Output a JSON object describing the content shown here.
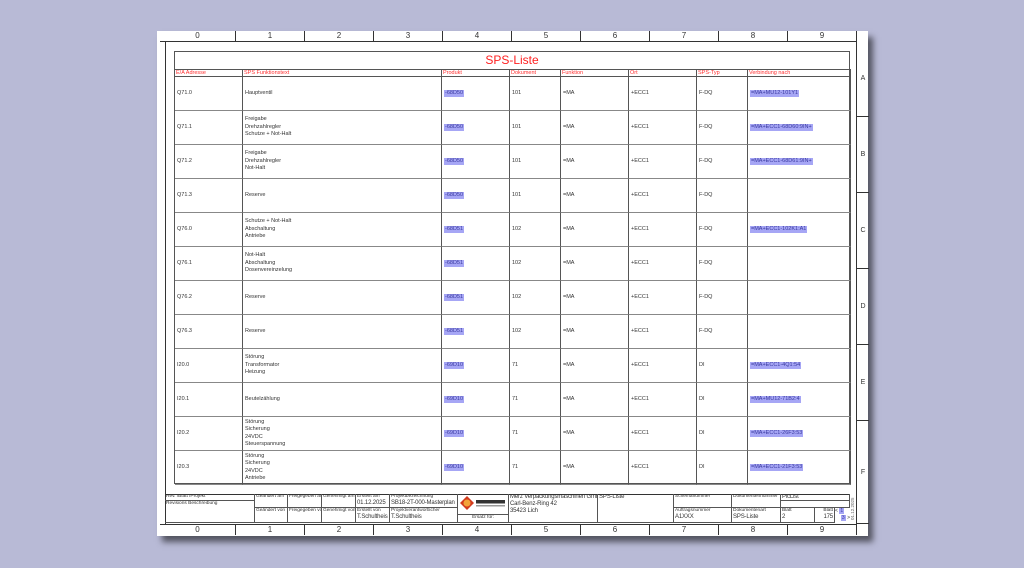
{
  "ruler": {
    "columns": [
      "0",
      "1",
      "2",
      "3",
      "4",
      "5",
      "6",
      "7",
      "8",
      "9"
    ],
    "rows": [
      "A",
      "B",
      "C",
      "D",
      "E",
      "F"
    ]
  },
  "title": "SPS-Liste",
  "headers": [
    "E/A Adresse",
    "SPS Funktionstext",
    "Produkt",
    "Dokument",
    "Funktion",
    "Ort",
    "SPS-Typ",
    "Verbindung nach"
  ],
  "rows": [
    {
      "addr": "Q71.0",
      "text": "Hauptventil",
      "prod": "-68D50",
      "doc": "101",
      "func": "=MA",
      "ort": "+ECC1",
      "typ": "F-DQ",
      "conn": "=MA+MU12-101Y1"
    },
    {
      "addr": "Q71.1",
      "text": "Freigabe\nDrehzahlregler\nSchutze + Not-Halt",
      "prod": "-68D50",
      "doc": "101",
      "func": "=MA",
      "ort": "+ECC1",
      "typ": "F-DQ",
      "conn": "=MA+ECC1-68D60:9IN+"
    },
    {
      "addr": "Q71.2",
      "text": "Freigabe\nDrehzahlregler\nNot-Halt",
      "prod": "-68D50",
      "doc": "101",
      "func": "=MA",
      "ort": "+ECC1",
      "typ": "F-DQ",
      "conn": "=MA+ECC1-68D61:9IN+"
    },
    {
      "addr": "Q71.3",
      "text": "Reserve",
      "prod": "-68D50",
      "doc": "101",
      "func": "=MA",
      "ort": "+ECC1",
      "typ": "F-DQ",
      "conn": ""
    },
    {
      "addr": "Q76.0",
      "text": "Schutze + Not-Halt\nAbschaltung\nAntriebe",
      "prod": "-68D51",
      "doc": "102",
      "func": "=MA",
      "ort": "+ECC1",
      "typ": "F-DQ",
      "conn": "=MA+ECC1-102K1:A1"
    },
    {
      "addr": "Q76.1",
      "text": "Not-Halt\nAbschaltung\nDosenvereinzelung",
      "prod": "-68D51",
      "doc": "102",
      "func": "=MA",
      "ort": "+ECC1",
      "typ": "F-DQ",
      "conn": ""
    },
    {
      "addr": "Q76.2",
      "text": "Reserve",
      "prod": "-68D51",
      "doc": "102",
      "func": "=MA",
      "ort": "+ECC1",
      "typ": "F-DQ",
      "conn": ""
    },
    {
      "addr": "Q76.3",
      "text": "Reserve",
      "prod": "-68D51",
      "doc": "102",
      "func": "=MA",
      "ort": "+ECC1",
      "typ": "F-DQ",
      "conn": ""
    },
    {
      "addr": "I20.0",
      "text": "Störung\nTransformator\nHeizung",
      "prod": "-69D10",
      "doc": "71",
      "func": "=MA",
      "ort": "+ECC1",
      "typ": "DI",
      "conn": "=MA+ECC1-4Q1:54"
    },
    {
      "addr": "I20.1",
      "text": "Beutelzählung",
      "prod": "-69D10",
      "doc": "71",
      "func": "=MA",
      "ort": "+ECC1",
      "typ": "DI",
      "conn": "=MA+MU12-71B2:4"
    },
    {
      "addr": "I20.2",
      "text": "Störung\nSicherung\n24VDC\nSteuerspannung",
      "prod": "-69D10",
      "doc": "71",
      "func": "=MA",
      "ort": "+ECC1",
      "typ": "DI",
      "conn": "=MA+ECC1-26F3:53"
    },
    {
      "addr": "I20.3",
      "text": "Störung\nSicherung\n24VDC\nAntriebe",
      "prod": "-69D10",
      "doc": "71",
      "func": "=MA",
      "ort": "+ECC1",
      "typ": "DI",
      "conn": "=MA+ECC1-21F3:53"
    }
  ],
  "titleblock": {
    "rev_header": "Rev.  /Blatt              /Projekt",
    "rev_desc": "Revisions Beschreibung",
    "changed_on": "Geändert am",
    "approved_on": "Freigegeben am",
    "authorized_on": "Genehmigt am",
    "changed_by": "Geändert von",
    "approved_by": "Freigegeben von",
    "authorized_by": "Genehmigt von",
    "created_on_label": "Erstellt am",
    "created_on": "01.12.2025",
    "created_by_label": "Erstellt von",
    "created_by": "T.Schultheis",
    "project_label": "Projektbezeichnung",
    "project": "SB18-2T-000-Masterplan",
    "responsible_label": "Projektverantwortlicher",
    "responsible": "T.Schultheis",
    "logo_text": "MERZ SYSTEM",
    "replaces": "Ersatz für:",
    "company": "Merz Verpackungsmaschinen GmbH",
    "street": "Carl-Benz-Ring 42",
    "city": "35423 Lich",
    "doc_title": "SPS-Liste",
    "scheme_label": "Schemanummer",
    "order_label": "Auftragsnummer",
    "order": "A1XXX",
    "docnum_label": "Dokumentennummer",
    "doctype_label": "Dokumentenart",
    "doctype": "SPS-Liste",
    "plclist": "PlcList",
    "sheet_label": "Blatt",
    "sheet": "2",
    "sheet_total_label": "Blatt",
    "sheet_total": "175",
    "prev": "<",
    "prev_val": "1",
    "next": ">",
    "next_val": "3",
    "side_date": "01.12.2025"
  },
  "colors": {
    "background": "#b8bad6",
    "title": "#ff2020",
    "highlight": "#a6a6f5"
  }
}
